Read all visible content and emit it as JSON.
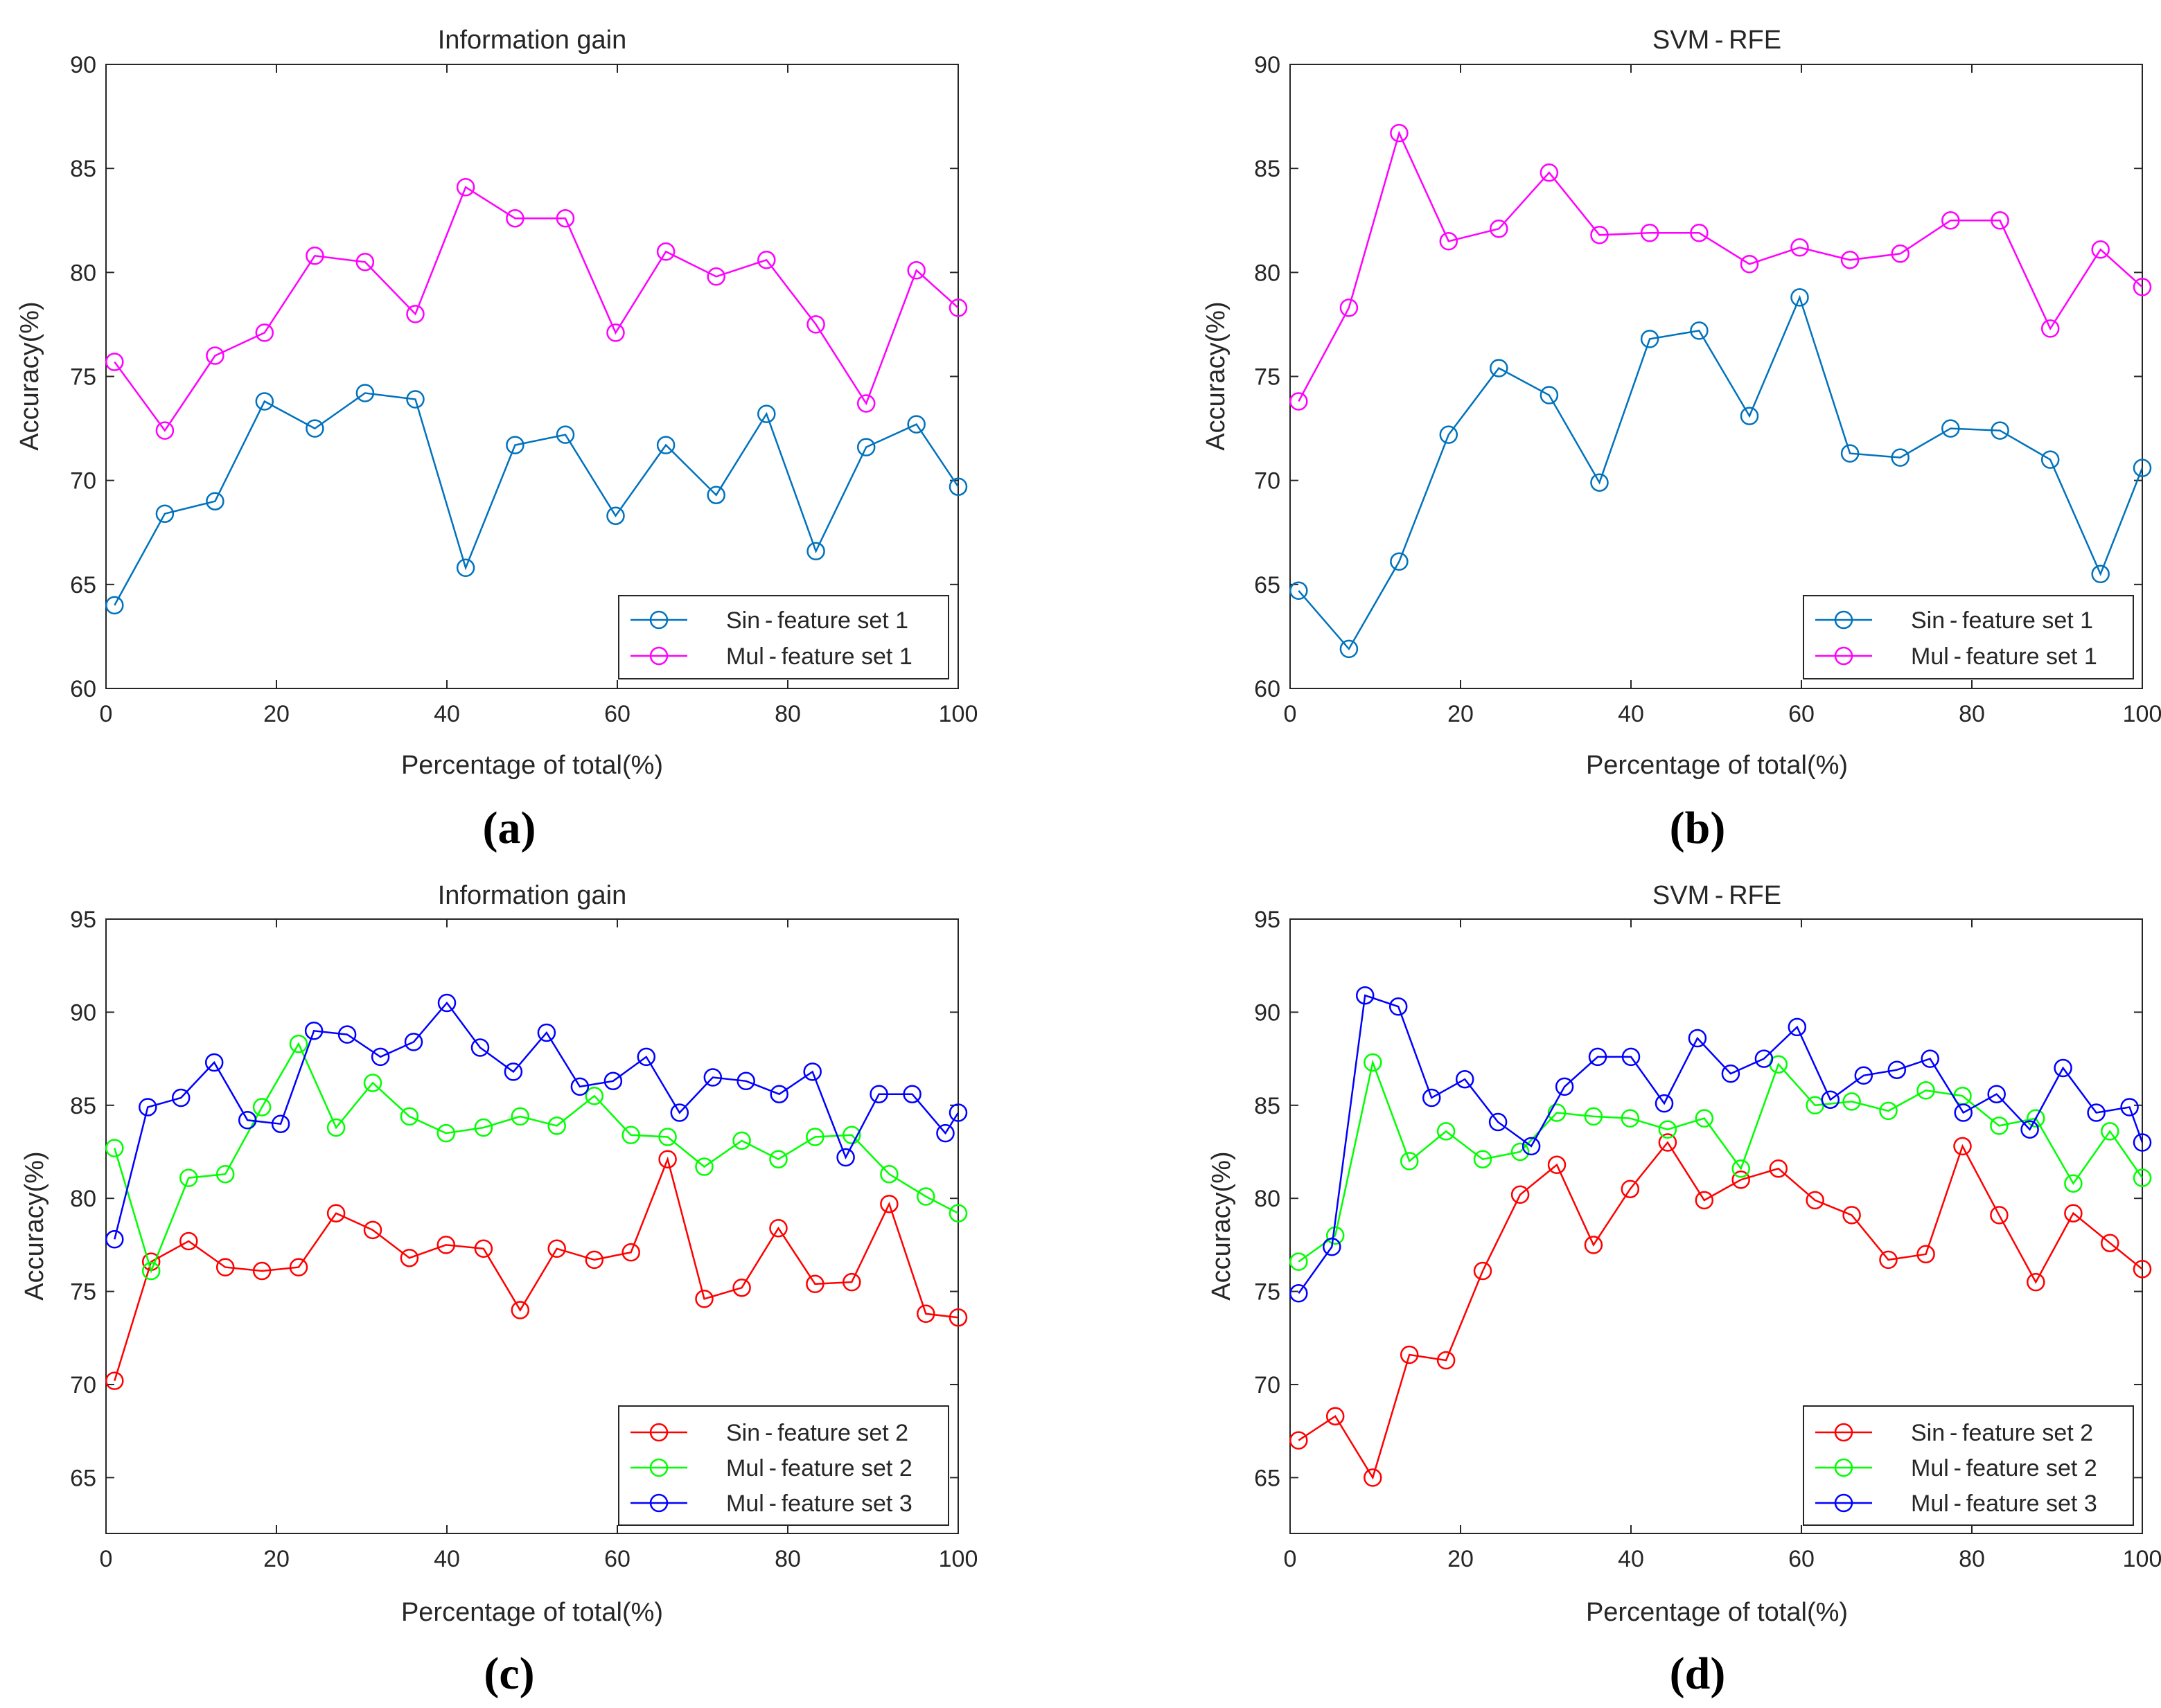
{
  "chart_data": [
    {
      "panel": "(a)",
      "type": "line",
      "title": "Information gain",
      "xlabel": "Percentage of total(%)",
      "ylabel": "Accuracy(%)",
      "xlim": [
        0,
        100
      ],
      "ylim": [
        60,
        90
      ],
      "xticks": [
        0,
        20,
        40,
        60,
        80,
        100
      ],
      "yticks": [
        60,
        65,
        70,
        75,
        80,
        85,
        90
      ],
      "legend_position": "bottom-right",
      "series": [
        {
          "name": "Sin - feature set 1",
          "color": "#0072BD",
          "x": [
            1,
            6.9,
            12.8,
            18.6,
            24.5,
            30.4,
            36.3,
            42.2,
            48,
            53.9,
            59.8,
            65.7,
            71.6,
            77.5,
            83.3,
            89.2,
            95.1,
            100
          ],
          "y": [
            64.0,
            68.4,
            69.0,
            73.8,
            72.5,
            74.2,
            73.9,
            65.8,
            71.7,
            72.2,
            68.3,
            71.7,
            69.3,
            73.2,
            66.6,
            71.6,
            72.7,
            69.7
          ]
        },
        {
          "name": "Mul - feature set 1",
          "color": "#FF00FF",
          "x": [
            1,
            6.9,
            12.8,
            18.6,
            24.5,
            30.4,
            36.3,
            42.2,
            48,
            53.9,
            59.8,
            65.7,
            71.6,
            77.5,
            83.3,
            89.2,
            95.1,
            100
          ],
          "y": [
            75.7,
            72.4,
            76.0,
            77.1,
            80.8,
            80.5,
            78.0,
            84.1,
            82.6,
            82.6,
            77.1,
            81.0,
            79.8,
            80.6,
            77.5,
            73.7,
            80.1,
            78.3
          ]
        }
      ]
    },
    {
      "panel": "(b)",
      "type": "line",
      "title": "SVM - RFE",
      "xlabel": "Percentage of total(%)",
      "ylabel": "Accuracy(%)",
      "xlim": [
        0,
        100
      ],
      "ylim": [
        60,
        90
      ],
      "xticks": [
        0,
        20,
        40,
        60,
        80,
        100
      ],
      "yticks": [
        60,
        65,
        70,
        75,
        80,
        85,
        90
      ],
      "legend_position": "bottom-right",
      "series": [
        {
          "name": "Sin - feature set 1",
          "color": "#0072BD",
          "x": [
            1,
            6.9,
            12.8,
            18.6,
            24.5,
            30.4,
            36.3,
            42.2,
            48,
            53.9,
            59.8,
            65.7,
            71.6,
            77.5,
            83.3,
            89.2,
            95.1,
            100
          ],
          "y": [
            64.7,
            61.9,
            66.1,
            72.2,
            75.4,
            74.1,
            69.9,
            76.8,
            77.2,
            73.1,
            78.8,
            71.3,
            71.1,
            72.5,
            72.4,
            71.0,
            65.5,
            70.6
          ]
        },
        {
          "name": "Mul - feature set 1",
          "color": "#FF00FF",
          "x": [
            1,
            6.9,
            12.8,
            18.6,
            24.5,
            30.4,
            36.3,
            42.2,
            48,
            53.9,
            59.8,
            65.7,
            71.6,
            77.5,
            83.3,
            89.2,
            95.1,
            100
          ],
          "y": [
            73.8,
            78.3,
            86.7,
            81.5,
            82.1,
            84.8,
            81.8,
            81.9,
            81.9,
            80.4,
            81.2,
            80.6,
            80.9,
            82.5,
            82.5,
            77.3,
            81.1,
            79.3
          ]
        }
      ]
    },
    {
      "panel": "(c)",
      "type": "line",
      "title": "Information gain",
      "xlabel": "Percentage of total(%)",
      "ylabel": "Accuracy(%)",
      "xlim": [
        0,
        100
      ],
      "ylim": [
        62,
        95
      ],
      "xticks": [
        0,
        20,
        40,
        60,
        80,
        100
      ],
      "yticks": [
        65,
        70,
        75,
        80,
        85,
        90,
        95
      ],
      "legend_position": "bottom-right",
      "series": [
        {
          "name": "Sin - feature set 2",
          "color": "#FF0000",
          "x": [
            1,
            5.3,
            9.7,
            14,
            18.3,
            22.6,
            27,
            31.3,
            35.6,
            39.9,
            44.3,
            48.6,
            52.9,
            57.3,
            61.6,
            65.9,
            70.2,
            74.6,
            78.9,
            83.2,
            87.5,
            91.9,
            96.2,
            100
          ],
          "y": [
            70.2,
            76.6,
            77.7,
            76.3,
            76.1,
            76.3,
            79.2,
            78.3,
            76.8,
            77.5,
            77.3,
            74.0,
            77.3,
            76.7,
            77.1,
            82.1,
            74.6,
            75.2,
            78.4,
            75.4,
            75.5,
            79.7,
            73.8,
            73.6
          ]
        },
        {
          "name": "Mul - feature set 2",
          "color": "#00FF00",
          "x": [
            1,
            5.3,
            9.7,
            14,
            18.3,
            22.6,
            27,
            31.3,
            35.6,
            39.9,
            44.3,
            48.6,
            52.9,
            57.3,
            61.6,
            65.9,
            70.2,
            74.6,
            78.9,
            83.2,
            87.5,
            91.9,
            96.2,
            100
          ],
          "y": [
            82.7,
            76.1,
            81.1,
            81.3,
            84.9,
            88.3,
            83.8,
            86.2,
            84.4,
            83.5,
            83.8,
            84.4,
            83.9,
            85.5,
            83.4,
            83.3,
            81.7,
            83.1,
            82.1,
            83.3,
            83.4,
            81.3,
            80.1,
            79.2
          ]
        },
        {
          "name": "Mul - feature set 3",
          "color": "#0000FF",
          "x": [
            1,
            4.9,
            8.8,
            12.7,
            16.6,
            20.5,
            24.4,
            28.3,
            32.2,
            36.1,
            40,
            43.9,
            47.8,
            51.7,
            55.6,
            59.5,
            63.4,
            67.3,
            71.2,
            75.1,
            79,
            82.9,
            86.8,
            90.7,
            94.6,
            98.5,
            100
          ],
          "y": [
            77.8,
            84.9,
            85.4,
            87.3,
            84.2,
            84.0,
            89.0,
            88.8,
            87.6,
            88.4,
            90.5,
            88.1,
            86.8,
            88.9,
            86.0,
            86.3,
            87.6,
            84.6,
            86.5,
            86.3,
            85.6,
            86.8,
            82.2,
            85.6,
            85.6,
            83.5,
            84.6
          ]
        }
      ]
    },
    {
      "panel": "(d)",
      "type": "line",
      "title": "SVM - RFE",
      "xlabel": "Percentage of total(%)",
      "ylabel": "Accuracy(%)",
      "xlim": [
        0,
        100
      ],
      "ylim": [
        62,
        95
      ],
      "xticks": [
        0,
        20,
        40,
        60,
        80,
        100
      ],
      "yticks": [
        65,
        70,
        75,
        80,
        85,
        90,
        95
      ],
      "legend_position": "bottom-right",
      "series": [
        {
          "name": "Sin - feature set 2",
          "color": "#FF0000",
          "x": [
            1,
            5.3,
            9.7,
            14,
            18.3,
            22.6,
            27,
            31.3,
            35.6,
            39.9,
            44.3,
            48.6,
            52.9,
            57.3,
            61.6,
            65.9,
            70.2,
            74.6,
            78.9,
            83.2,
            87.5,
            91.9,
            96.2,
            100
          ],
          "y": [
            67.0,
            68.3,
            65.0,
            71.6,
            71.3,
            76.1,
            80.2,
            81.8,
            77.5,
            80.5,
            83.0,
            79.9,
            81.0,
            81.6,
            79.9,
            79.1,
            76.7,
            77.0,
            82.8,
            79.1,
            75.5,
            79.2,
            77.6,
            76.2
          ]
        },
        {
          "name": "Mul - feature set 2",
          "color": "#00FF00",
          "x": [
            1,
            5.3,
            9.7,
            14,
            18.3,
            22.6,
            27,
            31.3,
            35.6,
            39.9,
            44.3,
            48.6,
            52.9,
            57.3,
            61.6,
            65.9,
            70.2,
            74.6,
            78.9,
            83.2,
            87.5,
            91.9,
            96.2,
            100
          ],
          "y": [
            76.6,
            78.0,
            87.3,
            82.0,
            83.6,
            82.1,
            82.5,
            84.6,
            84.4,
            84.3,
            83.7,
            84.3,
            81.6,
            87.2,
            85.0,
            85.2,
            84.7,
            85.8,
            85.5,
            83.9,
            84.3,
            80.8,
            83.6,
            81.1
          ]
        },
        {
          "name": "Mul - feature set 3",
          "color": "#0000FF",
          "x": [
            1,
            4.9,
            8.8,
            12.7,
            16.6,
            20.5,
            24.4,
            28.3,
            32.2,
            36.1,
            40,
            43.9,
            47.8,
            51.7,
            55.6,
            59.5,
            63.4,
            67.3,
            71.2,
            75.1,
            79,
            82.9,
            86.8,
            90.7,
            94.6,
            98.5,
            100
          ],
          "y": [
            74.9,
            77.4,
            90.9,
            90.3,
            85.4,
            86.4,
            84.1,
            82.8,
            86.0,
            87.6,
            87.6,
            85.1,
            88.6,
            86.7,
            87.5,
            89.2,
            85.3,
            86.6,
            86.9,
            87.5,
            84.6,
            85.6,
            83.7,
            87.0,
            84.6,
            84.9,
            83.0
          ]
        }
      ]
    }
  ]
}
